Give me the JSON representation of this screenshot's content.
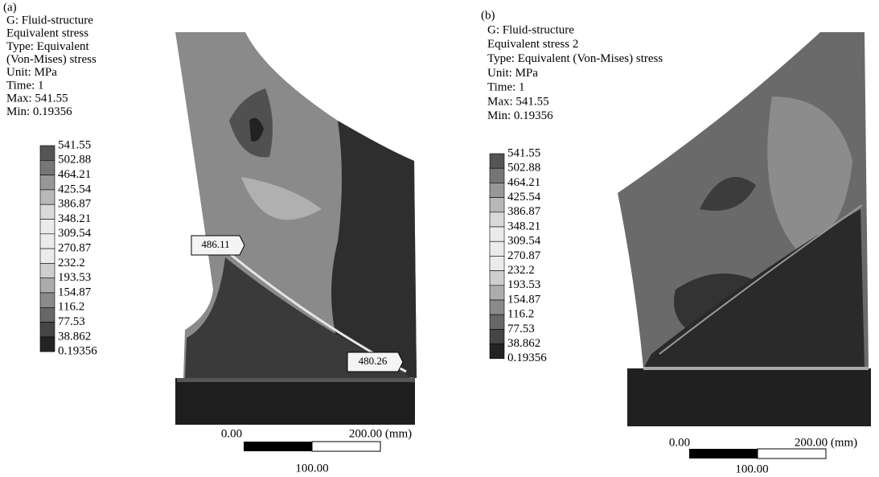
{
  "panels": [
    {
      "label": "(a)",
      "info": [
        "G: Fluid-structure",
        "Equivalent stress",
        "Type: Equivalent",
        "(Von-Mises) stress",
        "Unit: MPa",
        "Time: 1",
        "Max: 541.55",
        "Min: 0.19356"
      ],
      "legend": [
        "541.55",
        "502.88",
        "464.21",
        "425.54",
        "386.87",
        "348.21",
        "309.54",
        "270.87",
        "232.2",
        "193.53",
        "154.87",
        "116.2",
        "77.53",
        "38.862",
        "0.19356"
      ],
      "probes": [
        "486.11",
        "480.26"
      ],
      "scale": {
        "start": "0.00",
        "end": "200.00 (mm)",
        "mid": "100.00"
      }
    },
    {
      "label": "(b)",
      "info": [
        "G: Fluid-structure",
        "Equivalent stress 2",
        "Type: Equivalent (Von-Mises) stress",
        "Unit: MPa",
        "Time: 1",
        "Max: 541.55",
        "Min: 0.19356"
      ],
      "legend": [
        "541.55",
        "502.88",
        "464.21",
        "425.54",
        "386.87",
        "348.21",
        "309.54",
        "270.87",
        "232.2",
        "193.53",
        "154.87",
        "116.2",
        "77.53",
        "38.862",
        "0.19356"
      ],
      "scale": {
        "start": "0.00",
        "end": "200.00 (mm)",
        "mid": "100.00"
      }
    }
  ]
}
